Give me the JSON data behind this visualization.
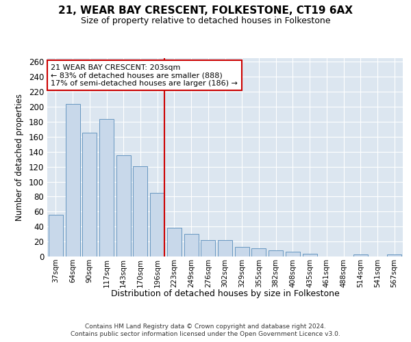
{
  "title": "21, WEAR BAY CRESCENT, FOLKESTONE, CT19 6AX",
  "subtitle": "Size of property relative to detached houses in Folkestone",
  "xlabel": "Distribution of detached houses by size in Folkestone",
  "ylabel": "Number of detached properties",
  "categories": [
    "37sqm",
    "64sqm",
    "90sqm",
    "117sqm",
    "143sqm",
    "170sqm",
    "196sqm",
    "223sqm",
    "249sqm",
    "276sqm",
    "302sqm",
    "329sqm",
    "355sqm",
    "382sqm",
    "408sqm",
    "435sqm",
    "461sqm",
    "488sqm",
    "514sqm",
    "541sqm",
    "567sqm"
  ],
  "values": [
    56,
    204,
    165,
    184,
    135,
    121,
    85,
    38,
    30,
    22,
    22,
    13,
    11,
    8,
    6,
    4,
    0,
    0,
    3,
    0,
    3
  ],
  "bar_color": "#c8d8ea",
  "bar_edge_color": "#6696c0",
  "vline_x_index": 6,
  "vline_color": "#cc0000",
  "annotation_line1": "21 WEAR BAY CRESCENT: 203sqm",
  "annotation_line2": "← 83% of detached houses are smaller (888)",
  "annotation_line3": "17% of semi-detached houses are larger (186) →",
  "annotation_box_edgecolor": "#cc0000",
  "ylim_max": 265,
  "yticks": [
    0,
    20,
    40,
    60,
    80,
    100,
    120,
    140,
    160,
    180,
    200,
    220,
    240,
    260
  ],
  "plot_bg_color": "#dce6f0",
  "fig_bg_color": "#ffffff",
  "grid_color": "#ffffff",
  "footer_line1": "Contains HM Land Registry data © Crown copyright and database right 2024.",
  "footer_line2": "Contains public sector information licensed under the Open Government Licence v3.0."
}
